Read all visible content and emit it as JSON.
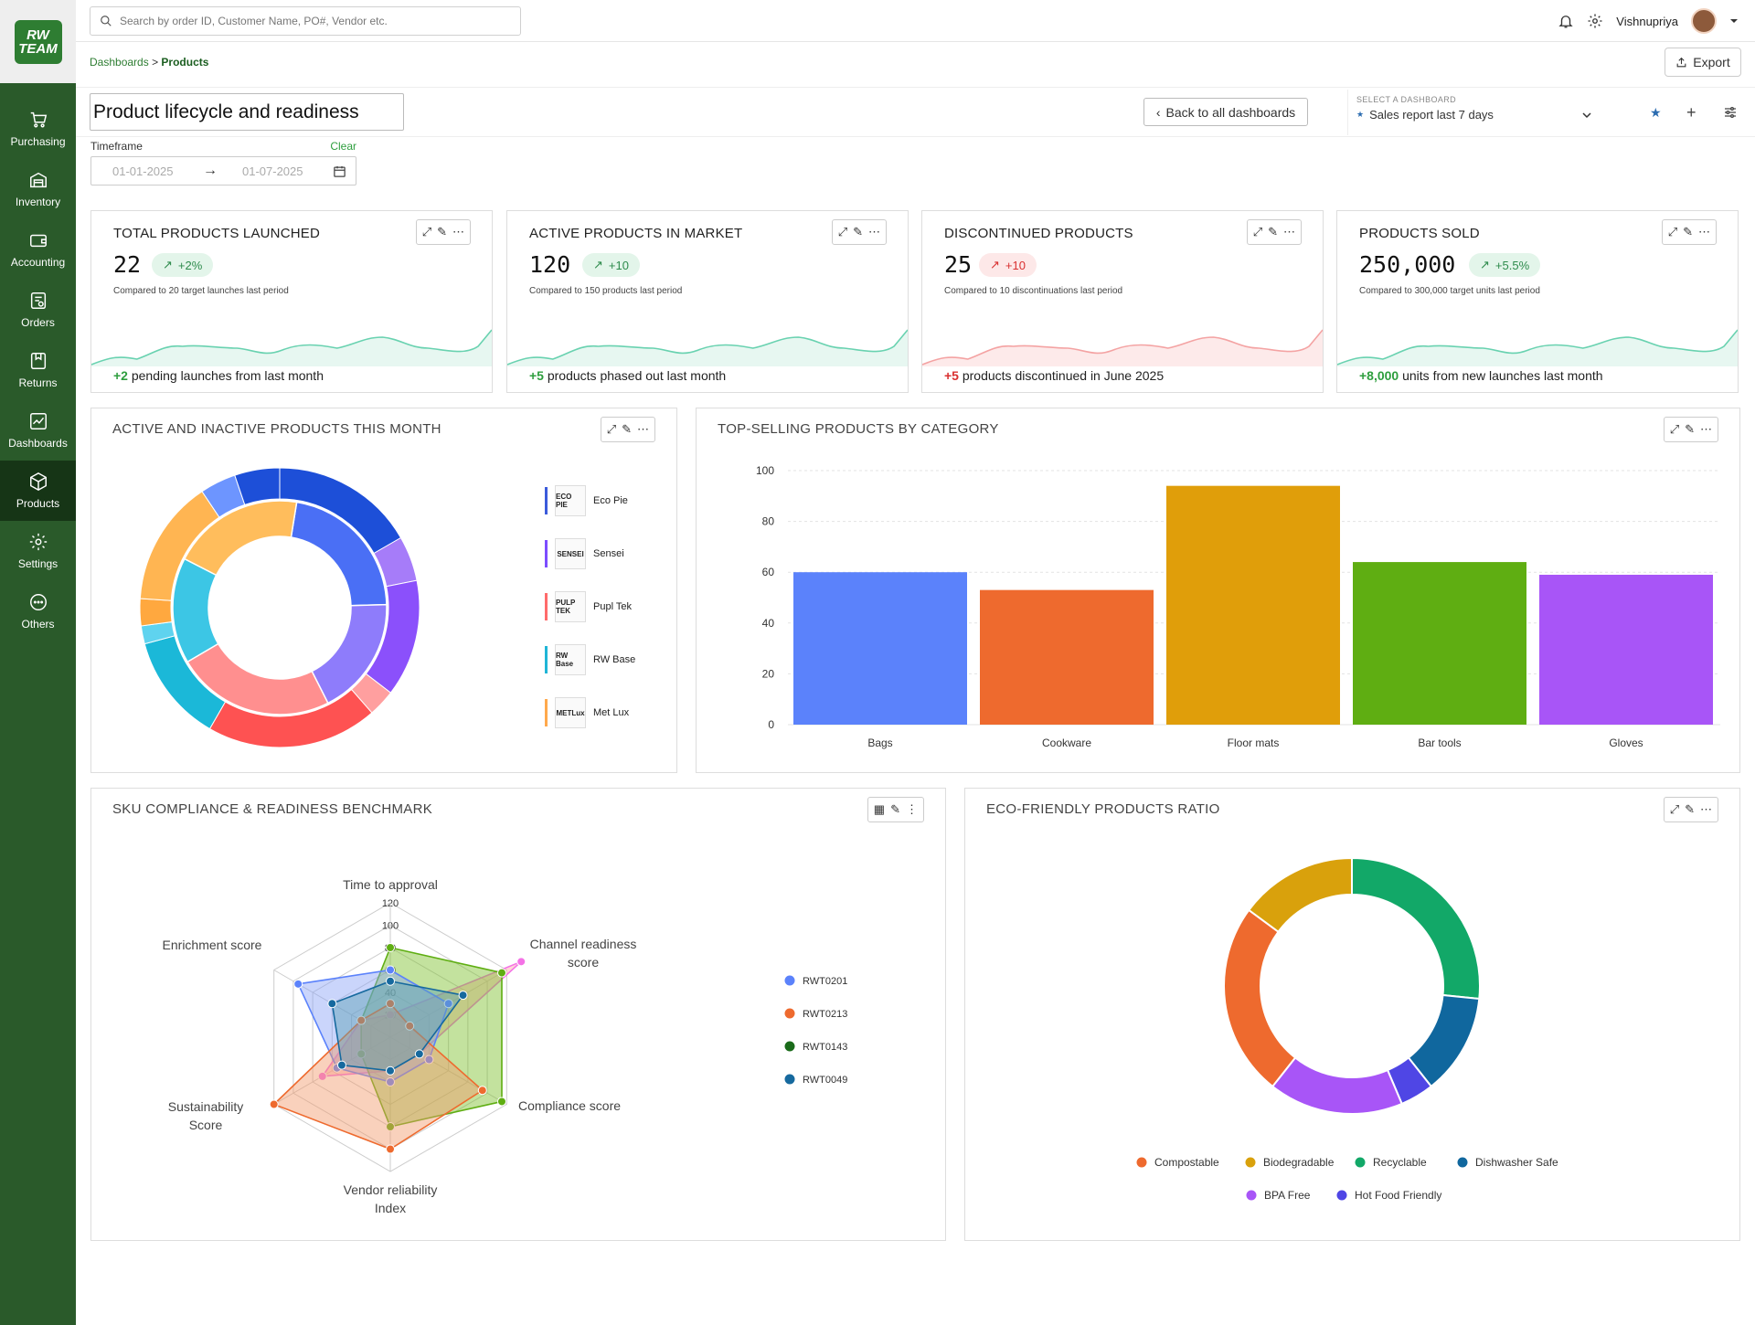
{
  "app": {
    "logo_line1": "RW",
    "logo_line2": "TEAM",
    "user_name": "Vishnupriya",
    "search_placeholder": "Search by order ID, Customer Name, PO#, Vendor etc."
  },
  "sidebar": {
    "items": [
      {
        "label": "Purchasing",
        "icon": "cart-icon"
      },
      {
        "label": "Inventory",
        "icon": "warehouse-icon"
      },
      {
        "label": "Accounting",
        "icon": "wallet-icon"
      },
      {
        "label": "Orders",
        "icon": "orders-icon"
      },
      {
        "label": "Returns",
        "icon": "returns-icon"
      },
      {
        "label": "Dashboards",
        "icon": "chart-icon"
      },
      {
        "label": "Products",
        "icon": "box-icon",
        "active": true
      },
      {
        "label": "Settings",
        "icon": "gear-icon"
      },
      {
        "label": "Others",
        "icon": "more-icon"
      }
    ]
  },
  "breadcrumb": {
    "root": "Dashboards",
    "sep": ">",
    "current": "Products"
  },
  "toolbar": {
    "export_label": "Export",
    "page_title": "Product lifecycle and readiness",
    "back_label": "Back to all dashboards",
    "select_label": "SELECT A DASHBOARD",
    "select_value": "Sales report last 7 days"
  },
  "timeframe": {
    "label": "Timeframe",
    "clear": "Clear",
    "start": "01-01-2025",
    "end": "01-07-2025"
  },
  "colors": {
    "brand": "#2a5a2a",
    "positive": "#2e9e3e",
    "negative": "#d93030"
  },
  "kpis": [
    {
      "title": "TOTAL PRODUCTS LAUNCHED",
      "value": "22",
      "delta": "+2%",
      "trend": "up",
      "sub": "Compared to 20 target launches last period",
      "foot_value": "+2",
      "foot_text": " pending launches from last month"
    },
    {
      "title": "ACTIVE PRODUCTS IN MARKET",
      "value": "120",
      "delta": "+10",
      "trend": "up",
      "sub": "Compared to 150 products last period",
      "foot_value": "+5",
      "foot_text": " products phased out last month"
    },
    {
      "title": "DISCONTINUED PRODUCTS",
      "value": "25",
      "delta": "+10",
      "trend": "down",
      "sub": "Compared to 10 discontinuations last period",
      "foot_value": "+5",
      "foot_text": " products discontinued in June 2025"
    },
    {
      "title": "PRODUCTS SOLD",
      "value": "250,000",
      "delta": "+5.5%",
      "trend": "up",
      "sub": "Compared to 300,000 target units last period",
      "foot_value": "+8,000",
      "foot_text": " units from new launches last month"
    }
  ],
  "sunburst": {
    "title": "ACTIVE AND INACTIVE PRODUCTS THIS MONTH",
    "brands": [
      {
        "name": "Eco Pie",
        "logo": "ECO PIE",
        "color": "#3b5bdb"
      },
      {
        "name": "Sensei",
        "logo": "SENSEI",
        "color": "#7c4dff"
      },
      {
        "name": "Pupl Tek",
        "logo": "PULP TEK",
        "color": "#ff6b6b"
      },
      {
        "name": "RW Base",
        "logo": "RW Base",
        "color": "#1fb5d6"
      },
      {
        "name": "Met Lux",
        "logo": "METLux",
        "color": "#ffa94d"
      }
    ]
  },
  "bar_chart": {
    "title": "TOP-SELLING PRODUCTS BY CATEGORY",
    "colors": [
      "#5b82fb",
      "#ee6a2e",
      "#e09e0a",
      "#5fae12",
      "#a855f7"
    ]
  },
  "radar_chart": {
    "title": "SKU COMPLIANCE & READINESS BENCHMARK",
    "legend_colors": [
      "#5b82fb",
      "#ee6a2e",
      "#1a6b1a",
      "#16699e"
    ]
  },
  "donut_chart": {
    "title": "ECO-FRIENDLY PRODUCTS RATIO",
    "colors": [
      "#ee6a2e",
      "#d9a10c",
      "#12a868",
      "#10679e",
      "#a855f7",
      "#4f46e5"
    ]
  },
  "chart_data": [
    {
      "type": "pie",
      "title": "ACTIVE AND INACTIVE PRODUCTS THIS MONTH",
      "inner_ring": {
        "categories": [
          "Eco Pie",
          "Sensei",
          "Pupl Tek",
          "RW Base",
          "Met Lux"
        ],
        "values": [
          22,
          18,
          24,
          16,
          20
        ]
      },
      "outer_ring": {
        "values": [
          16,
          5,
          13,
          3,
          19,
          12,
          2,
          3,
          14,
          4,
          5
        ]
      }
    },
    {
      "type": "bar",
      "title": "TOP-SELLING PRODUCTS BY CATEGORY",
      "categories": [
        "Bags",
        "Cookware",
        "Floor mats",
        "Bar tools",
        "Gloves"
      ],
      "values": [
        60,
        53,
        94,
        64,
        59
      ],
      "ylim": [
        0,
        100
      ],
      "yticks": [
        0,
        20,
        40,
        60,
        80,
        100
      ],
      "grid": true
    },
    {
      "type": "radar",
      "title": "SKU COMPLIANCE & READINESS BENCHMARK",
      "axes": [
        "Time to approval",
        "Channel readiness score",
        "Compliance score",
        "Vendor reliability Index",
        "Sustainability Score",
        "Enrichment score"
      ],
      "rticks": [
        20,
        40,
        60,
        80,
        100,
        120
      ],
      "rmax": 120,
      "series": [
        {
          "name": "RWT0201",
          "values": [
            60,
            60,
            40,
            40,
            55,
            95
          ]
        },
        {
          "name": "RWT0213",
          "values": [
            30,
            20,
            95,
            100,
            120,
            30
          ]
        },
        {
          "name": "RWT0143",
          "values": [
            80,
            115,
            115,
            80,
            30,
            30
          ]
        },
        {
          "name": "RWT0049",
          "values": [
            50,
            75,
            30,
            30,
            50,
            60
          ]
        }
      ],
      "extra_series": {
        "values": [
          20,
          135,
          30,
          30,
          70,
          30
        ]
      }
    },
    {
      "type": "pie",
      "title": "ECO-FRIENDLY PRODUCTS RATIO",
      "categories": [
        "Compostable",
        "Biodegradable",
        "Recyclable",
        "Dishwasher Safe",
        "BPA Free",
        "Hot Food Friendly"
      ],
      "values": [
        23,
        14,
        25,
        12,
        16,
        4
      ],
      "legend": "bottom"
    }
  ]
}
